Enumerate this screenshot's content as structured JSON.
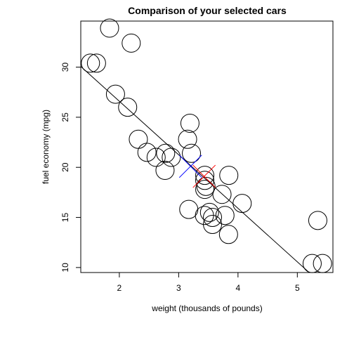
{
  "chart_data": {
    "type": "scatter",
    "title": "Comparison of your selected cars",
    "xlabel": "weight (thousands of pounds)",
    "ylabel": "fuel economy (mpg)",
    "xlim": [
      1.35,
      5.6
    ],
    "ylim": [
      9.5,
      34.6
    ],
    "x_ticks": [
      2,
      3,
      4,
      5
    ],
    "y_ticks": [
      10,
      15,
      20,
      25,
      30
    ],
    "x_tick_labels": [
      "2",
      "3",
      "4",
      "5"
    ],
    "y_tick_labels": [
      "10",
      "15",
      "20",
      "25",
      "30"
    ],
    "point_color": "#000000",
    "points": [
      {
        "x": 1.835,
        "y": 33.9
      },
      {
        "x": 2.2,
        "y": 32.4
      },
      {
        "x": 1.513,
        "y": 30.4
      },
      {
        "x": 1.615,
        "y": 30.4
      },
      {
        "x": 1.935,
        "y": 27.3
      },
      {
        "x": 2.14,
        "y": 26.0
      },
      {
        "x": 2.32,
        "y": 22.8
      },
      {
        "x": 3.19,
        "y": 24.4
      },
      {
        "x": 3.15,
        "y": 22.8
      },
      {
        "x": 2.465,
        "y": 21.5
      },
      {
        "x": 2.62,
        "y": 21.0
      },
      {
        "x": 2.875,
        "y": 21.0
      },
      {
        "x": 2.77,
        "y": 19.7
      },
      {
        "x": 2.78,
        "y": 21.4
      },
      {
        "x": 3.215,
        "y": 21.4
      },
      {
        "x": 3.44,
        "y": 18.7
      },
      {
        "x": 3.46,
        "y": 18.1
      },
      {
        "x": 3.44,
        "y": 17.8
      },
      {
        "x": 3.44,
        "y": 19.2
      },
      {
        "x": 3.845,
        "y": 19.2
      },
      {
        "x": 3.73,
        "y": 17.3
      },
      {
        "x": 4.07,
        "y": 16.4
      },
      {
        "x": 3.17,
        "y": 15.8
      },
      {
        "x": 3.435,
        "y": 15.2
      },
      {
        "x": 3.52,
        "y": 15.5
      },
      {
        "x": 3.78,
        "y": 15.2
      },
      {
        "x": 3.57,
        "y": 15.0
      },
      {
        "x": 3.57,
        "y": 14.3
      },
      {
        "x": 3.84,
        "y": 13.3
      },
      {
        "x": 5.345,
        "y": 14.7
      },
      {
        "x": 5.25,
        "y": 10.4
      },
      {
        "x": 5.424,
        "y": 10.4
      }
    ],
    "regression_line": {
      "color": "#000000",
      "intercept": 37.285,
      "slope": -5.344
    },
    "markers": [
      {
        "name": "blue-selection",
        "shape": "x",
        "color": "#0000ff",
        "x": 3.2,
        "y": 20.1
      },
      {
        "name": "red-selection",
        "shape": "x",
        "color": "#ff0000",
        "x": 3.43,
        "y": 19.1
      }
    ]
  }
}
